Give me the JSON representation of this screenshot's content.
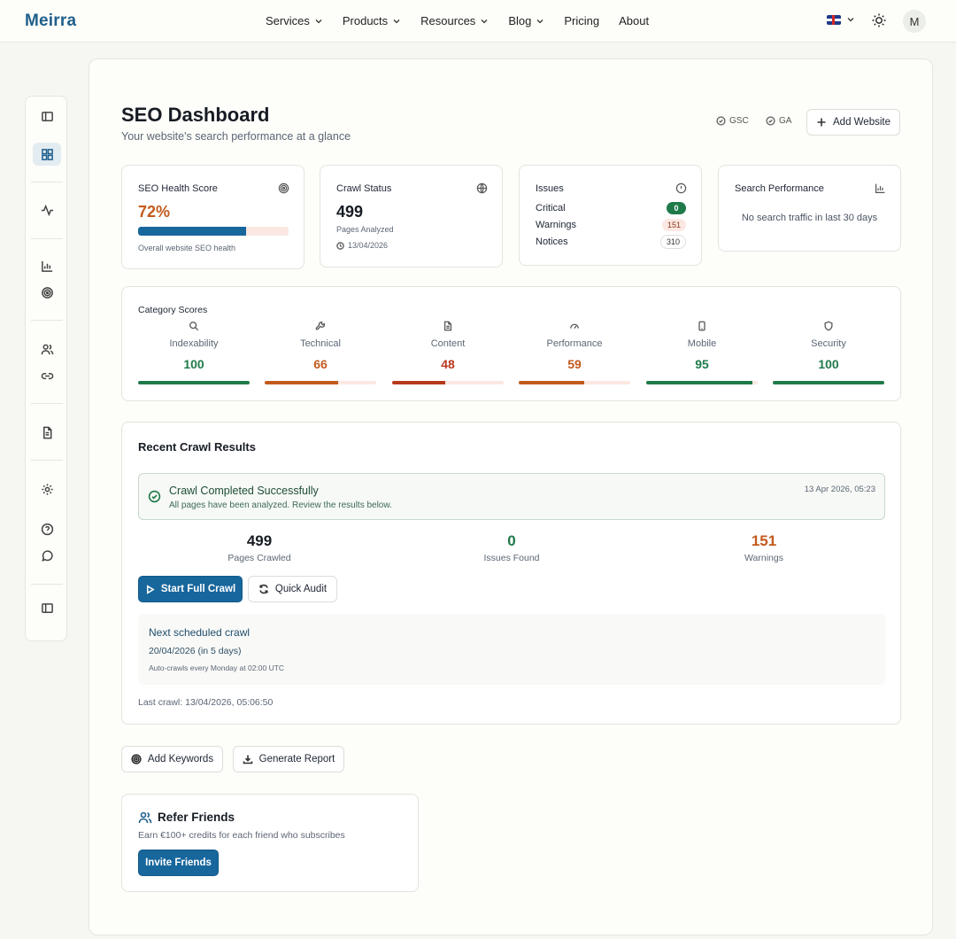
{
  "nav": {
    "brand": "Meirra",
    "links": [
      "Services",
      "Products",
      "Resources",
      "Blog",
      "Pricing",
      "About"
    ],
    "avatar_initial": "M"
  },
  "header": {
    "title": "SEO Dashboard",
    "subtitle": "Your website's search performance at a glance",
    "gsc_label": "GSC",
    "ga_label": "GA",
    "add_website": "Add Website"
  },
  "health": {
    "title": "SEO Health Score",
    "value": "72%",
    "percent": 72,
    "caption": "Overall website SEO health"
  },
  "crawl_status": {
    "title": "Crawl Status",
    "pages": "499",
    "label": "Pages Analyzed",
    "date": "13/04/2026"
  },
  "issues": {
    "title": "Issues",
    "rows": [
      {
        "label": "Critical",
        "count": "0"
      },
      {
        "label": "Warnings",
        "count": "151"
      },
      {
        "label": "Notices",
        "count": "310"
      }
    ]
  },
  "search_perf": {
    "title": "Search Performance",
    "empty": "No search traffic in last 30 days"
  },
  "categories": {
    "title": "Category Scores",
    "items": [
      {
        "label": "Indexability",
        "score": "100",
        "value": 100,
        "icon": "search-icon"
      },
      {
        "label": "Technical",
        "score": "66",
        "value": 66,
        "icon": "wrench-icon"
      },
      {
        "label": "Content",
        "score": "48",
        "value": 48,
        "icon": "document-icon"
      },
      {
        "label": "Performance",
        "score": "59",
        "value": 59,
        "icon": "gauge-icon"
      },
      {
        "label": "Mobile",
        "score": "95",
        "value": 95,
        "icon": "mobile-icon"
      },
      {
        "label": "Security",
        "score": "100",
        "value": 100,
        "icon": "shield-icon"
      }
    ]
  },
  "recent": {
    "title": "Recent Crawl Results",
    "success_title": "Crawl Completed Successfully",
    "success_desc": "All pages have been analyzed. Review the results below.",
    "success_time": "13 Apr 2026, 05:23",
    "stats": [
      {
        "value": "499",
        "label": "Pages Crawled"
      },
      {
        "value": "0",
        "label": "Issues Found"
      },
      {
        "value": "151",
        "label": "Warnings"
      }
    ],
    "start_crawl": "Start Full Crawl",
    "quick_audit": "Quick Audit",
    "next_title": "Next scheduled crawl",
    "next_date": "20/04/2026 (in 5 days)",
    "next_note": "Auto-crawls every Monday at 02:00 UTC",
    "last_crawl": "Last crawl: 13/04/2026, 05:06:50"
  },
  "actions": {
    "add_keywords": "Add Keywords",
    "generate_report": "Generate Report"
  },
  "refer": {
    "title": "Refer Friends",
    "desc": "Earn €100+ credits for each friend who subscribes",
    "button": "Invite Friends"
  },
  "colors": {
    "primary": "#17669c",
    "good": "#1f7a4a",
    "warn": "#c25a1d",
    "bad": "#b8381e",
    "track": "#fbe8e2"
  }
}
